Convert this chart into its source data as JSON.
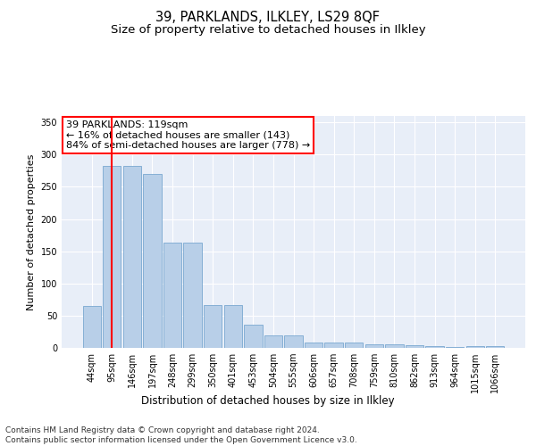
{
  "title1": "39, PARKLANDS, ILKLEY, LS29 8QF",
  "title2": "Size of property relative to detached houses in Ilkley",
  "xlabel": "Distribution of detached houses by size in Ilkley",
  "ylabel": "Number of detached properties",
  "categories": [
    "44sqm",
    "95sqm",
    "146sqm",
    "197sqm",
    "248sqm",
    "299sqm",
    "350sqm",
    "401sqm",
    "453sqm",
    "504sqm",
    "555sqm",
    "606sqm",
    "657sqm",
    "708sqm",
    "759sqm",
    "810sqm",
    "862sqm",
    "913sqm",
    "964sqm",
    "1015sqm",
    "1066sqm"
  ],
  "values": [
    65,
    282,
    282,
    270,
    163,
    163,
    66,
    66,
    36,
    20,
    20,
    8,
    9,
    9,
    6,
    5,
    4,
    3,
    2,
    3,
    3
  ],
  "bar_color": "#b8cfe8",
  "bar_edge_color": "#7aa8d0",
  "vline_x_index": 1,
  "vline_color": "red",
  "annotation_text": "39 PARKLANDS: 119sqm\n← 16% of detached houses are smaller (143)\n84% of semi-detached houses are larger (778) →",
  "annotation_box_color": "white",
  "annotation_box_edge": "red",
  "footer": "Contains HM Land Registry data © Crown copyright and database right 2024.\nContains public sector information licensed under the Open Government Licence v3.0.",
  "ylim": [
    0,
    360
  ],
  "yticks": [
    0,
    50,
    100,
    150,
    200,
    250,
    300,
    350
  ],
  "background_color": "#e8eef8",
  "grid_color": "#ffffff",
  "title1_fontsize": 10.5,
  "title2_fontsize": 9.5,
  "xlabel_fontsize": 8.5,
  "ylabel_fontsize": 8,
  "tick_fontsize": 7,
  "footer_fontsize": 6.5,
  "annotation_fontsize": 8
}
